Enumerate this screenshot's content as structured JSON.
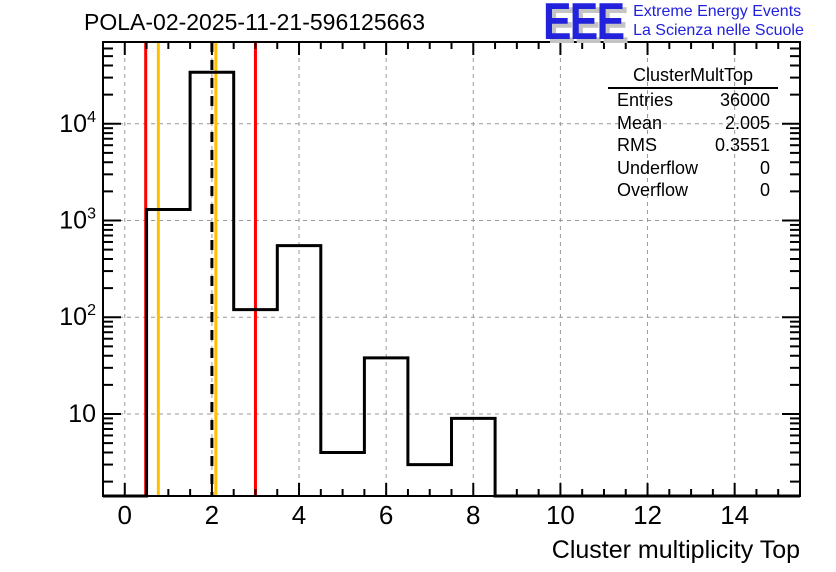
{
  "header": {
    "title": "POLA-02-2025-11-21-596125663"
  },
  "logo": {
    "acronym": "EEE",
    "tagline_line1": "Extreme Energy Events",
    "tagline_line2": "La Scienza nelle Scuole",
    "text_color": "#2222dd",
    "shadow_color": "#c4c4c4"
  },
  "stats_box": {
    "title": "ClusterMultTop",
    "rows": [
      {
        "label": "Entries",
        "value": "36000"
      },
      {
        "label": "Mean",
        "value": "2.005"
      },
      {
        "label": "RMS",
        "value": "0.3551"
      },
      {
        "label": "Underflow",
        "value": "0"
      },
      {
        "label": "Overflow",
        "value": "0"
      }
    ]
  },
  "chart_data": {
    "type": "bar",
    "subtype": "step-histogram",
    "title": "POLA-02-2025-11-21-596125663",
    "xlabel": "Cluster multiplicity Top",
    "ylabel": "",
    "yscale": "log",
    "xlim": [
      -0.5,
      15.5
    ],
    "ylim": [
      1.42,
      70000
    ],
    "bin_width": 1,
    "categories": [
      1,
      2,
      3,
      4,
      5,
      6,
      7,
      8
    ],
    "values": [
      1300,
      34000,
      120,
      550,
      4,
      38,
      3,
      9
    ],
    "line_color": "#000000",
    "grid": {
      "style": "dashed",
      "color": "#999999",
      "on_major_ticks": true
    },
    "xticks": [
      {
        "value": 0,
        "label": "0"
      },
      {
        "value": 2,
        "label": "2"
      },
      {
        "value": 4,
        "label": "4"
      },
      {
        "value": 6,
        "label": "6"
      },
      {
        "value": 8,
        "label": "8"
      },
      {
        "value": 10,
        "label": "10"
      },
      {
        "value": 12,
        "label": "12"
      },
      {
        "value": 14,
        "label": "14"
      }
    ],
    "xtick_minor_step": 0.5,
    "yticks": [
      {
        "value": 10,
        "label_base": "10",
        "label_exp": ""
      },
      {
        "value": 100,
        "label_base": "10",
        "label_exp": "2"
      },
      {
        "value": 1000,
        "label_base": "10",
        "label_exp": "3"
      },
      {
        "value": 10000,
        "label_base": "10",
        "label_exp": "4"
      }
    ],
    "reference_lines": [
      {
        "x": 0.48,
        "color": "#ff0000",
        "style": "solid",
        "name": "red-line-left"
      },
      {
        "x": 3.0,
        "color": "#ff0000",
        "style": "solid",
        "name": "red-line-right"
      },
      {
        "x": 0.77,
        "color": "#ffc000",
        "style": "solid",
        "name": "orange-line-left"
      },
      {
        "x": 2.09,
        "color": "#ffc000",
        "style": "solid",
        "name": "orange-line-right"
      },
      {
        "x": 2.0,
        "color": "#000000",
        "style": "dashed",
        "name": "mean-dashed-line"
      }
    ]
  }
}
